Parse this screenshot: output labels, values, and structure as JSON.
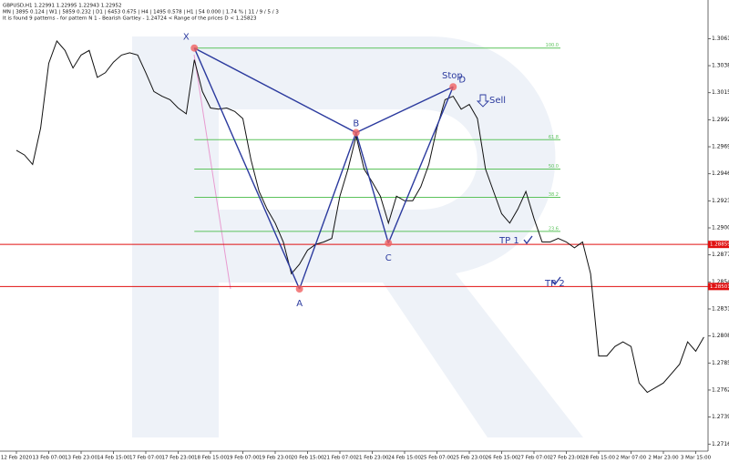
{
  "chart_data": {
    "type": "line",
    "header": [
      "GBPUSD,H1  1.22991 1.22995 1.22943 1.22952",
      "MN | 3895  0.124 | W1 | 5859  0.232 | D1 | 6453  0.675 | H4 | 1495  0.578 | H1 | 54  0.000 | 1.74 % | 11 / 9 / 5 / 3",
      "It is found 9 patterns  -  for pattern N 1 - Bearish Gartley - 1.24724 < Range of the prices D < 1.25823"
    ],
    "categories": [
      "12 Feb 2020",
      null,
      null,
      null,
      "13 Feb 07:00",
      null,
      null,
      null,
      "13 Feb 23:00",
      null,
      null,
      null,
      "14 Feb 15:00",
      null,
      null,
      null,
      "17 Feb 07:00",
      null,
      null,
      null,
      "17 Feb 23:00",
      null,
      null,
      null,
      "18 Feb 15:00",
      null,
      null,
      null,
      "19 Feb 07:00",
      null,
      null,
      null,
      "19 Feb 23:00",
      null,
      null,
      null,
      "20 Feb 15:00",
      null,
      null,
      null,
      "21 Feb 07:00",
      null,
      null,
      null,
      "21 Feb 23:00",
      null,
      null,
      null,
      "24 Feb 15:00",
      null,
      null,
      null,
      "25 Feb 07:00",
      null,
      null,
      null,
      "25 Feb 23:00",
      null,
      null,
      null,
      "26 Feb 15:00",
      null,
      null,
      null,
      "27 Feb 07:00",
      null,
      null,
      null,
      "27 Feb 23:00",
      null,
      null,
      null,
      "28 Feb 15:00",
      null,
      null,
      null,
      "2 Mar 07:00",
      null,
      null,
      null,
      "2 Mar 23:00",
      null,
      null,
      null,
      "3 Mar 15:00",
      null
    ],
    "values": [
      1.2966,
      1.2962,
      1.2954,
      1.2985,
      1.304,
      1.3059,
      1.3051,
      1.3036,
      1.3047,
      1.3051,
      1.3028,
      1.3032,
      1.3041,
      1.3047,
      1.3049,
      1.3047,
      1.3032,
      1.3016,
      1.3012,
      1.3009,
      1.3002,
      1.2997,
      1.3043,
      1.3016,
      1.3002,
      1.3001,
      1.3002,
      1.2999,
      1.2993,
      1.2958,
      1.2931,
      1.2916,
      1.2904,
      1.2888,
      1.2861,
      1.2869,
      1.2881,
      1.2886,
      1.2888,
      1.2891,
      1.2927,
      1.295,
      1.2978,
      1.295,
      1.2939,
      1.2927,
      1.2904,
      1.2927,
      1.2923,
      1.2923,
      1.2935,
      1.2954,
      1.2985,
      1.3009,
      1.3012,
      1.3001,
      1.3005,
      1.2993,
      1.295,
      1.2931,
      1.2912,
      1.2904,
      1.2916,
      1.2931,
      1.2908,
      1.2888,
      1.2888,
      1.2891,
      1.2888,
      1.2883,
      1.2888,
      1.2861,
      1.2791,
      1.2791,
      1.2799,
      1.2803,
      1.2799,
      1.2768,
      1.276,
      1.2764,
      1.2768,
      1.2776,
      1.2784,
      1.2803,
      1.2795,
      1.2807
    ],
    "color": "#111111",
    "pattern_values": [
      null,
      null,
      null,
      null,
      null,
      null,
      null,
      null,
      null,
      null,
      null,
      null,
      null,
      null,
      null,
      null,
      null,
      null,
      null,
      null,
      null,
      null,
      1.3053,
      null,
      null,
      null,
      null,
      null,
      null,
      null,
      null,
      null,
      null,
      null,
      null,
      1.2848,
      null,
      null,
      null,
      null,
      null,
      null,
      1.2981,
      null,
      null,
      null,
      1.2887,
      null,
      null,
      null,
      null,
      null,
      null,
      null,
      1.302,
      null,
      null,
      null,
      null,
      null,
      null,
      null,
      null,
      null,
      null,
      null,
      null,
      null,
      null,
      null,
      null,
      null,
      null,
      null,
      null,
      null,
      null,
      null,
      null,
      null,
      null,
      null,
      null,
      null,
      null,
      null
    ],
    "pattern_labels": [
      null,
      null,
      null,
      null,
      null,
      null,
      null,
      null,
      null,
      null,
      null,
      null,
      null,
      null,
      null,
      null,
      null,
      null,
      null,
      null,
      null,
      null,
      "X",
      null,
      null,
      null,
      null,
      null,
      null,
      null,
      null,
      null,
      null,
      null,
      null,
      "A",
      null,
      null,
      null,
      null,
      null,
      null,
      "B",
      null,
      null,
      null,
      "C",
      null,
      null,
      null,
      null,
      null,
      null,
      null,
      "D",
      null,
      null,
      null,
      null,
      null,
      null,
      null,
      null,
      null,
      null,
      null,
      null,
      null,
      null,
      null,
      null,
      null,
      null,
      null,
      null,
      null,
      null,
      null,
      null,
      null,
      null,
      null,
      null,
      null,
      null,
      null
    ],
    "pattern_color": "#2b3a9e",
    "fib_levels": [
      1.3053,
      1.2975,
      1.295,
      1.2926,
      1.2897
    ],
    "fib_labels": [
      "100.0",
      "61.8",
      "50.0",
      "38.2",
      "23.6"
    ],
    "fib_color": "#5cc35c",
    "hlines": [
      1.28859,
      1.28501
    ],
    "hline_color": "#e01010",
    "annotations": [
      "Stop",
      "Sell",
      "TP 1",
      "TP 2"
    ],
    "ylim": [
      1.271,
      1.309
    ],
    "yticks": [
      {
        "value": 1.3061,
        "label": "1.30610"
      },
      {
        "value": 1.3038,
        "label": "1.30380"
      },
      {
        "value": 1.3015,
        "label": "1.30150"
      },
      {
        "value": 1.2992,
        "label": "1.29920"
      },
      {
        "value": 1.2969,
        "label": "1.29690"
      },
      {
        "value": 1.2946,
        "label": "1.29460"
      },
      {
        "value": 1.2923,
        "label": "1.29230"
      },
      {
        "value": 1.29,
        "label": "1.29000"
      },
      {
        "value": 1.2877,
        "label": "1.28770"
      },
      {
        "value": 1.2854,
        "label": "1.28540"
      },
      {
        "value": 1.2831,
        "label": "1.28310"
      },
      {
        "value": 1.2808,
        "label": "1.28080"
      },
      {
        "value": 1.2785,
        "label": "1.27850"
      },
      {
        "value": 1.2762,
        "label": "1.27620"
      },
      {
        "value": 1.2739,
        "label": "1.27390"
      },
      {
        "value": 1.2716,
        "label": "1.27160"
      }
    ]
  }
}
